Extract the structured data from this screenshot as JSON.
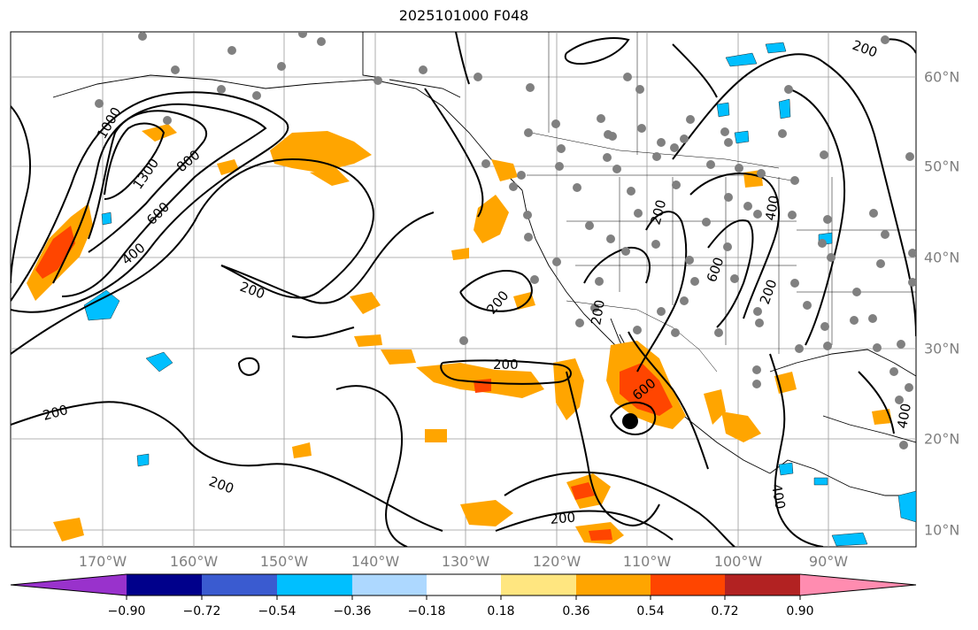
{
  "title": "2025101000 F048",
  "map": {
    "lon_labels": [
      "170°W",
      "160°W",
      "150°W",
      "140°W",
      "130°W",
      "120°W",
      "110°W",
      "100°W",
      "90°W"
    ],
    "lat_labels": [
      "60°N",
      "50°N",
      "40°N",
      "30°N",
      "20°N",
      "10°N"
    ],
    "contour_labels": [
      "1000",
      "1300",
      "800",
      "600",
      "400",
      "200",
      "200",
      "200",
      "200",
      "200",
      "200",
      "600",
      "200",
      "200",
      "400",
      "600",
      "200",
      "400",
      "400",
      "200"
    ],
    "fill_colors": {
      "light_orange": "#ffa500",
      "red_orange": "#ff4500",
      "light_blue": "#00bfff",
      "contour": "#000000",
      "station": "#808080"
    }
  },
  "colorbar": {
    "colors": [
      "#9932cc",
      "#00008b",
      "#3a5bd0",
      "#00bfff",
      "#add8ff",
      "#ffffff",
      "#ffe680",
      "#ffa500",
      "#ff4500",
      "#b22222",
      "#ff8cb0"
    ],
    "tick_labels": [
      "−0.90",
      "−0.72",
      "−0.54",
      "−0.36",
      "−0.18",
      "0.18",
      "0.36",
      "0.54",
      "0.72",
      "0.90"
    ]
  }
}
